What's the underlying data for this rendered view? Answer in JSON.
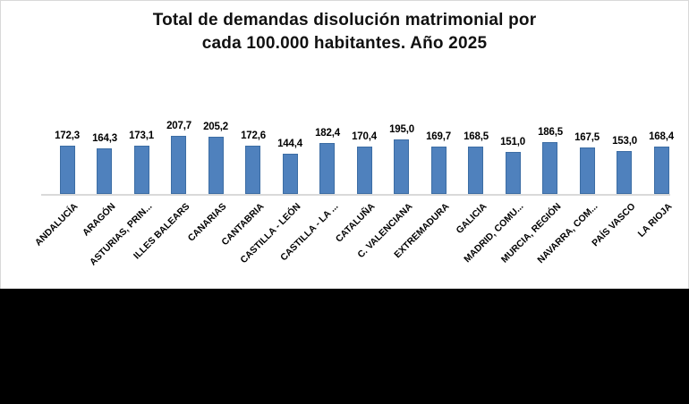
{
  "header": {
    "title_line1": "Total de demandas disolución matrimonial por",
    "title_line2": "cada 100.000 habitantes. Año 2025"
  },
  "chart_data": {
    "type": "bar",
    "title": "Total de demandas disolución matrimonial por cada 100.000 habitantes. Año 2025",
    "categories": [
      "ANDALUCÍA",
      "ARAGÓN",
      "ASTURIAS, PRIN...",
      "ILLES BALEARS",
      "CANARIAS",
      "CANTABRIA",
      "CASTILLA - LEÓN",
      "CASTILLA - LA ...",
      "CATALUÑA",
      "C. VALENCIANA",
      "EXTREMADURA",
      "GALICIA",
      "MADRID, COMU...",
      "MURCIA, REGIÓN",
      "NAVARRA, COM...",
      "PAÍS VASCO",
      "LA RIOJA"
    ],
    "values": [
      172.3,
      164.3,
      173.1,
      207.7,
      205.2,
      172.6,
      144.4,
      182.4,
      170.4,
      195.0,
      169.7,
      168.5,
      151.0,
      186.5,
      167.5,
      153.0,
      168.4
    ],
    "value_labels": [
      "172,3",
      "164,3",
      "173,1",
      "207,7",
      "205,2",
      "172,6",
      "144,4",
      "182,4",
      "170,4",
      "195,0",
      "169,7",
      "168,5",
      "151,0",
      "186,5",
      "167,5",
      "153,0",
      "168,4"
    ],
    "xlabel": "",
    "ylabel": "",
    "ylim": [
      0,
      220
    ],
    "grid": false,
    "legend": false,
    "data_labels": true,
    "bar_color": "#4f81bd",
    "bar_border_color": "#3c6da4",
    "axis_color": "#d9d9d9",
    "text_color": "#000000",
    "background_color": "#ffffff"
  }
}
